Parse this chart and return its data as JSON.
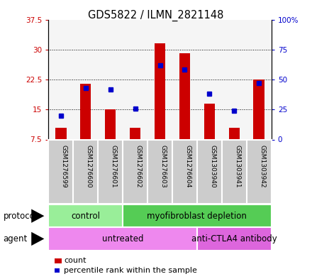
{
  "title": "GDS5822 / ILMN_2821148",
  "samples": [
    "GSM1276599",
    "GSM1276600",
    "GSM1276601",
    "GSM1276602",
    "GSM1276603",
    "GSM1276604",
    "GSM1303940",
    "GSM1303941",
    "GSM1303942"
  ],
  "counts": [
    10.5,
    21.5,
    15.0,
    10.5,
    31.5,
    29.0,
    16.5,
    10.5,
    22.5
  ],
  "percentiles": [
    20,
    43,
    42,
    26,
    62,
    58,
    38,
    24,
    47
  ],
  "ylim_left": [
    7.5,
    37.5
  ],
  "ylim_right": [
    0,
    100
  ],
  "yticks_left": [
    7.5,
    15.0,
    22.5,
    30.0,
    37.5
  ],
  "yticks_right": [
    0,
    25,
    50,
    75,
    100
  ],
  "ytick_labels_left": [
    "7.5",
    "15",
    "22.5",
    "30",
    "37.5"
  ],
  "ytick_labels_right": [
    "0",
    "25",
    "50",
    "75",
    "100%"
  ],
  "bar_color": "#cc0000",
  "dot_color": "#0000cc",
  "bar_bottom": 7.5,
  "protocol_groups": [
    {
      "label": "control",
      "start": 0,
      "end": 3,
      "color": "#99ee99"
    },
    {
      "label": "myofibroblast depletion",
      "start": 3,
      "end": 9,
      "color": "#55cc55"
    }
  ],
  "agent_groups": [
    {
      "label": "untreated",
      "start": 0,
      "end": 6,
      "color": "#ee88ee"
    },
    {
      "label": "anti-CTLA4 antibody",
      "start": 6,
      "end": 9,
      "color": "#dd66dd"
    }
  ],
  "protocol_label": "protocol",
  "agent_label": "agent",
  "legend_count_label": "count",
  "legend_pct_label": "percentile rank within the sample",
  "bar_color_hex": "#cc0000",
  "dot_color_hex": "#0000cc",
  "tick_color_left": "#cc0000",
  "tick_color_right": "#0000cc",
  "sample_box_color": "#cccccc",
  "bg_color": "#ffffff"
}
